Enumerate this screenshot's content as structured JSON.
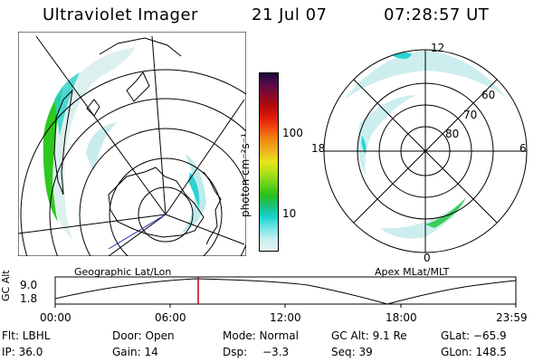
{
  "header": {
    "instrument": "Ultraviolet Imager",
    "date": "21 Jul 07",
    "time": "07:28:57 UT"
  },
  "left_panel": {
    "caption": "Geographic Lat/Lon"
  },
  "right_panel": {
    "caption": "Apex MLat/MLT",
    "mlt_labels": [
      "12",
      "18",
      "6",
      "0"
    ],
    "lat_labels": [
      "60",
      "70",
      "80"
    ]
  },
  "colorbar": {
    "unit_label": "photon cm⁻²s⁻¹",
    "tick_labels": [
      "100",
      "10"
    ],
    "colors": [
      "#1a0a3a",
      "#5a0a4a",
      "#8a0a2a",
      "#b40a0a",
      "#e01a0a",
      "#f05010",
      "#f08a10",
      "#f0b020",
      "#e6e61a",
      "#b0e01a",
      "#6ad21a",
      "#2ac01a",
      "#1ac080",
      "#1ad2d2",
      "#7ae6e6",
      "#c8f0f0",
      "#e6f4f4"
    ]
  },
  "timeline": {
    "axis_label": "GC Alt",
    "y_labels": [
      "9.0",
      "1.8"
    ],
    "x_labels": [
      "00:00",
      "06:00",
      "12:00",
      "18:00",
      "23:59"
    ],
    "marker_color": "#c00000"
  },
  "info": {
    "row1": {
      "filter": "Flt: LBHL",
      "door": "Door: Open",
      "mode": "Mode: Normal",
      "gc_alt": "GC Alt: 9.1 Re",
      "glat": "GLat: −65.9"
    },
    "row2": {
      "ip": "IP: 36.0",
      "gain": "Gain: 14",
      "dsp_label": "Dsp:",
      "dsp_value": "−3.3",
      "seq": "Seq: 39",
      "glon": "GLon: 148.5"
    }
  }
}
